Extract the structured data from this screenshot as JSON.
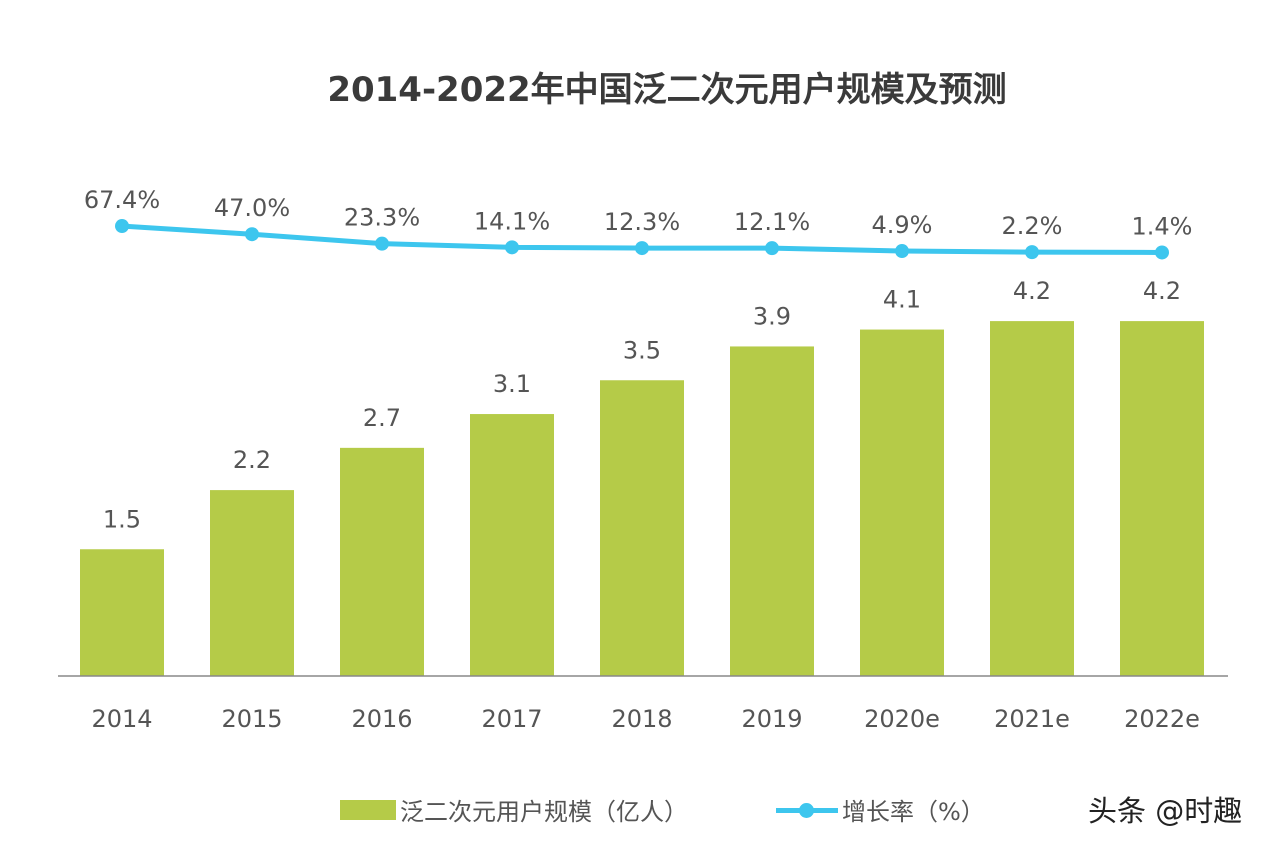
{
  "chart_data": {
    "type": "bar+line",
    "title": "2014-2022年中国泛二次元用户规模及预测",
    "categories": [
      "2014",
      "2015",
      "2016",
      "2017",
      "2018",
      "2019",
      "2020e",
      "2021e",
      "2022e"
    ],
    "series": [
      {
        "name": "泛二次元用户规模（亿人）",
        "type": "bar",
        "color": "#b5cb48",
        "values": [
          1.5,
          2.2,
          2.7,
          3.1,
          3.5,
          3.9,
          4.1,
          4.2,
          4.2
        ],
        "labels": [
          "1.5",
          "2.2",
          "2.7",
          "3.1",
          "3.5",
          "3.9",
          "4.1",
          "4.2",
          "4.2"
        ]
      },
      {
        "name": "增长率（%）",
        "type": "line",
        "color": "#3dc6ee",
        "values": [
          67.4,
          47.0,
          23.3,
          14.1,
          12.3,
          12.1,
          4.9,
          2.2,
          1.4
        ],
        "labels": [
          "67.4%",
          "47.0%",
          "23.3%",
          "14.1%",
          "12.3%",
          "12.1%",
          "4.9%",
          "2.2%",
          "1.4%"
        ]
      }
    ],
    "legend_position": "bottom",
    "grid": false
  },
  "legend": {
    "bar_label": "泛二次元用户规模（亿人）",
    "line_label": "增长率（%）"
  },
  "watermark": "头条 @时趣"
}
